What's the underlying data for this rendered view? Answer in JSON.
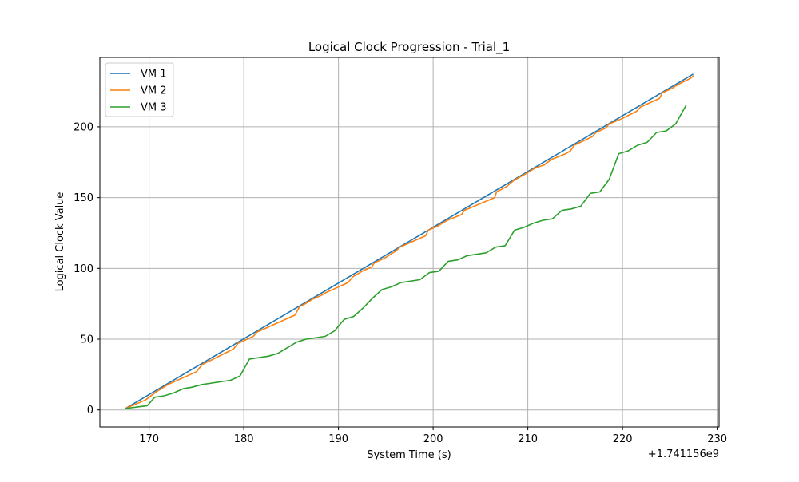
{
  "chart_data": {
    "type": "line",
    "title": "Logical Clock Progression - Trial_1",
    "xlabel": "System Time (s)",
    "ylabel": "Logical Clock Value",
    "x_offset_label": "+1.741156e9",
    "xlim": [
      164.8,
      230.2
    ],
    "ylim": [
      -12,
      249
    ],
    "x_ticks": [
      {
        "value": 170,
        "label": "170"
      },
      {
        "value": 180,
        "label": "180"
      },
      {
        "value": 190,
        "label": "190"
      },
      {
        "value": 200,
        "label": "200"
      },
      {
        "value": 210,
        "label": "210"
      },
      {
        "value": 220,
        "label": "220"
      },
      {
        "value": 230,
        "label": "230"
      }
    ],
    "y_ticks": [
      {
        "value": 0,
        "label": "0"
      },
      {
        "value": 50,
        "label": "50"
      },
      {
        "value": 100,
        "label": "100"
      },
      {
        "value": 150,
        "label": "150"
      },
      {
        "value": 200,
        "label": "200"
      }
    ],
    "grid": true,
    "legend_position": "top-left",
    "series": [
      {
        "name": "VM 1",
        "color": "#1f77b4",
        "points": [
          [
            167.5,
            1
          ],
          [
            227.4,
            237
          ]
        ]
      },
      {
        "name": "VM 2",
        "color": "#ff7f0e",
        "points": [
          [
            167.5,
            1
          ],
          [
            169.6,
            7
          ],
          [
            170.8,
            13
          ],
          [
            172.0,
            18
          ],
          [
            175.0,
            27
          ],
          [
            175.6,
            32
          ],
          [
            178.9,
            43
          ],
          [
            179.4,
            47
          ],
          [
            181.0,
            52
          ],
          [
            181.4,
            55
          ],
          [
            185.4,
            67
          ],
          [
            185.9,
            73
          ],
          [
            186.5,
            75
          ],
          [
            187.2,
            78
          ],
          [
            188.2,
            81
          ],
          [
            188.7,
            83
          ],
          [
            189.7,
            86
          ],
          [
            191.0,
            90
          ],
          [
            191.5,
            94
          ],
          [
            192.5,
            98
          ],
          [
            193.5,
            101
          ],
          [
            193.8,
            104
          ],
          [
            194.8,
            107
          ],
          [
            196.0,
            112
          ],
          [
            196.5,
            115
          ],
          [
            199.2,
            123
          ],
          [
            199.5,
            127
          ],
          [
            200.5,
            130
          ],
          [
            201.5,
            134
          ],
          [
            203.0,
            138
          ],
          [
            203.3,
            141
          ],
          [
            206.5,
            150
          ],
          [
            206.7,
            154
          ],
          [
            207.8,
            158
          ],
          [
            208.5,
            162
          ],
          [
            209.8,
            167
          ],
          [
            210.8,
            171
          ],
          [
            211.7,
            173
          ],
          [
            212.5,
            177
          ],
          [
            214.0,
            181
          ],
          [
            214.5,
            183
          ],
          [
            214.9,
            187
          ],
          [
            216.8,
            193
          ],
          [
            217.2,
            196
          ],
          [
            218.2,
            199
          ],
          [
            218.6,
            202
          ],
          [
            220.0,
            206
          ],
          [
            221.5,
            211
          ],
          [
            221.9,
            214
          ],
          [
            223.9,
            220
          ],
          [
            224.2,
            224
          ],
          [
            225.2,
            227
          ],
          [
            225.9,
            230
          ],
          [
            227.1,
            234
          ],
          [
            227.5,
            236
          ]
        ]
      },
      {
        "name": "VM 3",
        "color": "#2ca02c",
        "points": [
          [
            167.5,
            1
          ],
          [
            169.8,
            3
          ],
          [
            170.6,
            9
          ],
          [
            171.6,
            10
          ],
          [
            172.6,
            12
          ],
          [
            173.6,
            15
          ],
          [
            174.5,
            16
          ],
          [
            175.6,
            18
          ],
          [
            178.6,
            21
          ],
          [
            179.6,
            24
          ],
          [
            180.6,
            36
          ],
          [
            182.6,
            38
          ],
          [
            183.6,
            40
          ],
          [
            185.6,
            48
          ],
          [
            186.6,
            50
          ],
          [
            188.6,
            52
          ],
          [
            189.6,
            56
          ],
          [
            190.6,
            64
          ],
          [
            191.6,
            66
          ],
          [
            192.6,
            72
          ],
          [
            193.6,
            79
          ],
          [
            194.6,
            85
          ],
          [
            195.6,
            87
          ],
          [
            196.6,
            90
          ],
          [
            198.6,
            92
          ],
          [
            199.6,
            97
          ],
          [
            200.6,
            98
          ],
          [
            201.6,
            105
          ],
          [
            202.6,
            106
          ],
          [
            203.6,
            109
          ],
          [
            205.6,
            111
          ],
          [
            206.6,
            115
          ],
          [
            207.6,
            116
          ],
          [
            208.6,
            127
          ],
          [
            209.6,
            129
          ],
          [
            210.6,
            132
          ],
          [
            211.6,
            134
          ],
          [
            212.6,
            135
          ],
          [
            213.6,
            141
          ],
          [
            214.6,
            142
          ],
          [
            215.6,
            144
          ],
          [
            216.6,
            153
          ],
          [
            217.6,
            154
          ],
          [
            218.6,
            163
          ],
          [
            219.6,
            181
          ],
          [
            220.6,
            183
          ],
          [
            221.6,
            187
          ],
          [
            222.6,
            189
          ],
          [
            223.6,
            196
          ],
          [
            224.6,
            197
          ],
          [
            225.6,
            202
          ],
          [
            226.7,
            215
          ]
        ]
      }
    ]
  }
}
